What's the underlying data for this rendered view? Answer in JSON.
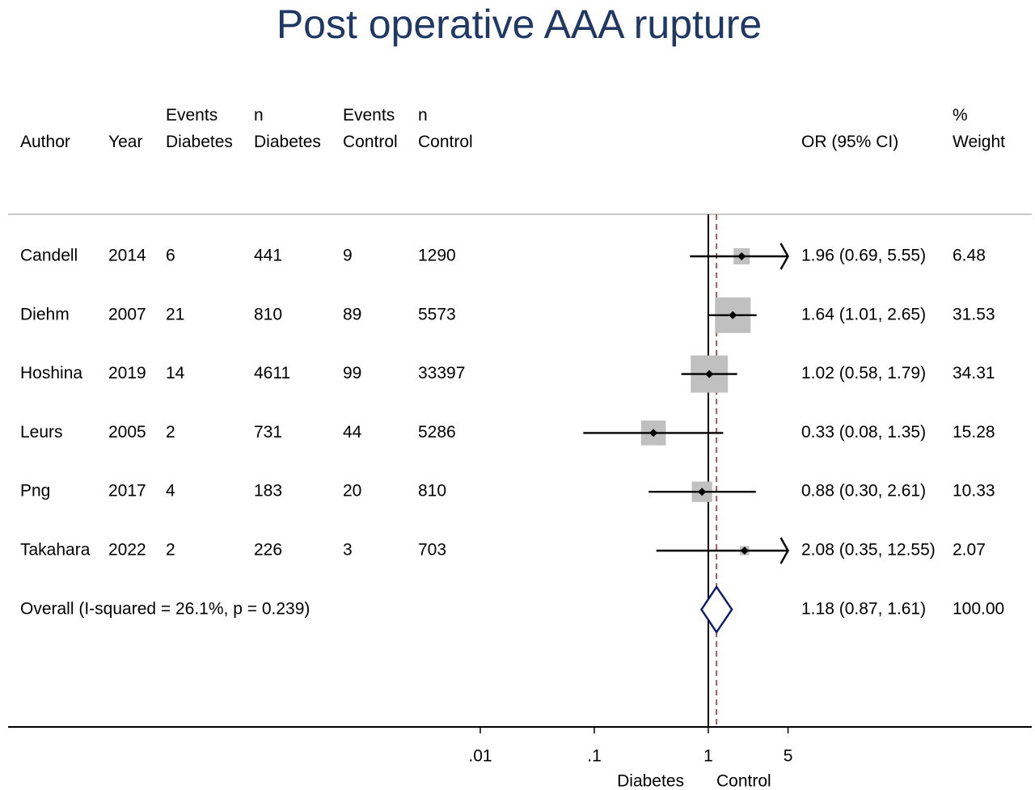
{
  "title": "Post operative AAA rupture",
  "columns": {
    "author": [
      "Author"
    ],
    "year": [
      "Year"
    ],
    "events_diabetes": [
      "Events",
      "Diabetes"
    ],
    "n_diabetes": [
      "n",
      "Diabetes"
    ],
    "events_control": [
      "Events",
      "Control"
    ],
    "n_control": [
      "n",
      "Control"
    ],
    "or_ci": [
      "OR (95% CI)"
    ],
    "weight": [
      "%",
      "Weight"
    ]
  },
  "colors": {
    "title": "#1f3864",
    "box": "#c0c0c0",
    "diamond": "#0d1a6b",
    "ref_line": "#000000",
    "overall_line": "#b03030",
    "divider": "#c8c8c8"
  },
  "chart_data": {
    "type": "forest",
    "title": "Post operative AAA rupture",
    "x_scale": "log",
    "x_ticks": [
      {
        "value": 0.01,
        "label": ".01"
      },
      {
        "value": 0.1,
        "label": ".1"
      },
      {
        "value": 1,
        "label": "1"
      },
      {
        "value": 5,
        "label": "5"
      }
    ],
    "x_clip": [
      0.01,
      5
    ],
    "null_value": 1,
    "x_side_labels": {
      "left": "Diabetes",
      "right": "Control"
    },
    "studies": [
      {
        "author": "Candell",
        "year": "2014",
        "events_diabetes": "6",
        "n_diabetes": "441",
        "events_control": "9",
        "n_control": "1290",
        "or": 1.96,
        "lo": 0.69,
        "hi": 5.55,
        "or_ci_text": "1.96 (0.69, 5.55)",
        "weight": 6.48,
        "weight_text": "6.48"
      },
      {
        "author": "Diehm",
        "year": "2007",
        "events_diabetes": "21",
        "n_diabetes": "810",
        "events_control": "89",
        "n_control": "5573",
        "or": 1.64,
        "lo": 1.01,
        "hi": 2.65,
        "or_ci_text": "1.64 (1.01, 2.65)",
        "weight": 31.53,
        "weight_text": "31.53"
      },
      {
        "author": "Hoshina",
        "year": "2019",
        "events_diabetes": "14",
        "n_diabetes": "4611",
        "events_control": "99",
        "n_control": "33397",
        "or": 1.02,
        "lo": 0.58,
        "hi": 1.79,
        "or_ci_text": "1.02 (0.58, 1.79)",
        "weight": 34.31,
        "weight_text": "34.31"
      },
      {
        "author": "Leurs",
        "year": "2005",
        "events_diabetes": "2",
        "n_diabetes": "731",
        "events_control": "44",
        "n_control": "5286",
        "or": 0.33,
        "lo": 0.08,
        "hi": 1.35,
        "or_ci_text": "0.33 (0.08, 1.35)",
        "weight": 15.28,
        "weight_text": "15.28"
      },
      {
        "author": "Png",
        "year": "2017",
        "events_diabetes": "4",
        "n_diabetes": "183",
        "events_control": "20",
        "n_control": "810",
        "or": 0.88,
        "lo": 0.3,
        "hi": 2.61,
        "or_ci_text": "0.88 (0.30, 2.61)",
        "weight": 10.33,
        "weight_text": "10.33"
      },
      {
        "author": "Takahara",
        "year": "2022",
        "events_diabetes": "2",
        "n_diabetes": "226",
        "events_control": "3",
        "n_control": "703",
        "or": 2.08,
        "lo": 0.35,
        "hi": 12.55,
        "or_ci_text": "2.08 (0.35, 12.55)",
        "weight": 2.07,
        "weight_text": "2.07"
      }
    ],
    "overall": {
      "label": "Overall  (I-squared = 26.1%, p = 0.239)",
      "or": 1.18,
      "lo": 0.87,
      "hi": 1.61,
      "or_ci_text": "1.18 (0.87, 1.61)",
      "weight_text": "100.00"
    }
  }
}
